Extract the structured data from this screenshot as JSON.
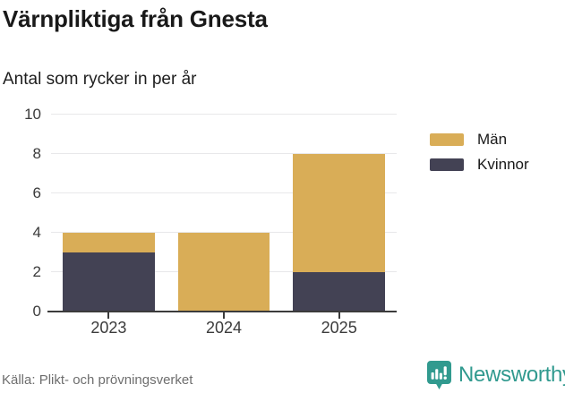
{
  "page": {
    "title": "Värnpliktiga från Gnesta",
    "subtitle": "Antal som rycker in per år"
  },
  "chart_data": {
    "type": "bar",
    "stacked": true,
    "title": "Värnpliktiga från Gnesta",
    "subtitle": "Antal som rycker in per år",
    "categories": [
      "2023",
      "2024",
      "2025"
    ],
    "series": [
      {
        "name": "Män",
        "color": "#D9AD57",
        "values": [
          1,
          4,
          6
        ]
      },
      {
        "name": "Kvinnor",
        "color": "#434254",
        "values": [
          3,
          0,
          2
        ]
      }
    ],
    "stack_totals": [
      4,
      4,
      8
    ],
    "xlabel": "",
    "ylabel": "",
    "ylim": [
      0,
      10
    ],
    "yticks": [
      0,
      2,
      4,
      6,
      8,
      10
    ],
    "grid": true,
    "legend_position": "right"
  },
  "footer": {
    "source": "Källa: Plikt- och prövningsverket",
    "brand": "Newsworthy"
  },
  "colors": {
    "men": "#D9AD57",
    "women": "#434254",
    "brand_teal": "#319a8f",
    "gridline": "#e8e8ea",
    "axis": "#3b3b3b"
  },
  "icons": {
    "brand_logo": "newsworthy-pin-barchart-icon"
  }
}
